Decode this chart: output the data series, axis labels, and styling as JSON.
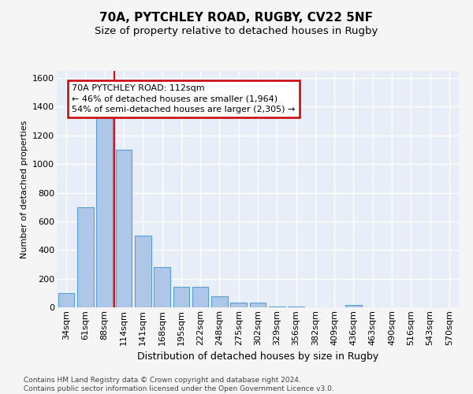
{
  "title1": "70A, PYTCHLEY ROAD, RUGBY, CV22 5NF",
  "title2": "Size of property relative to detached houses in Rugby",
  "xlabel": "Distribution of detached houses by size in Rugby",
  "ylabel": "Number of detached properties",
  "footnote1": "Contains HM Land Registry data © Crown copyright and database right 2024.",
  "footnote2": "Contains public sector information licensed under the Open Government Licence v3.0.",
  "bar_labels": [
    "34sqm",
    "61sqm",
    "88sqm",
    "114sqm",
    "141sqm",
    "168sqm",
    "195sqm",
    "222sqm",
    "248sqm",
    "275sqm",
    "302sqm",
    "329sqm",
    "356sqm",
    "382sqm",
    "409sqm",
    "436sqm",
    "463sqm",
    "490sqm",
    "516sqm",
    "543sqm",
    "570sqm"
  ],
  "bar_values": [
    100,
    700,
    1340,
    1100,
    500,
    280,
    145,
    145,
    75,
    35,
    35,
    5,
    5,
    0,
    0,
    15,
    0,
    0,
    0,
    0,
    0
  ],
  "bar_color": "#aec6e8",
  "bar_edge_color": "#5a9fd4",
  "property_line_label": "70A PYTCHLEY ROAD: 112sqm",
  "annotation_line1": "← 46% of detached houses are smaller (1,964)",
  "annotation_line2": "54% of semi-detached houses are larger (2,305) →",
  "annotation_box_edgecolor": "#cc0000",
  "ylim": [
    0,
    1650
  ],
  "yticks": [
    0,
    200,
    400,
    600,
    800,
    1000,
    1200,
    1400,
    1600
  ],
  "bg_color": "#e8eef8",
  "grid_color": "#ffffff",
  "fig_bg_color": "#f5f5f5",
  "title1_fontsize": 11,
  "title2_fontsize": 9.5,
  "ylabel_fontsize": 8,
  "xlabel_fontsize": 9,
  "tick_fontsize": 8,
  "footnote_fontsize": 6.5,
  "annotation_fontsize": 8
}
